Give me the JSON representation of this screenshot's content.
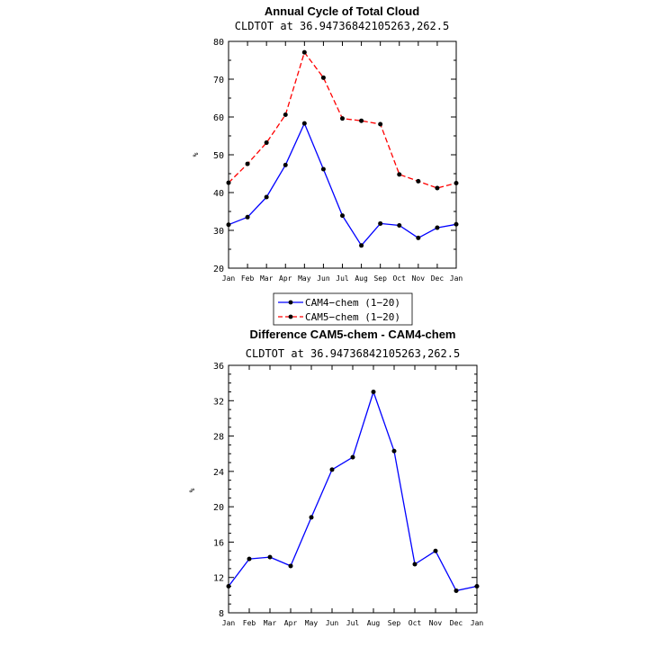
{
  "chart_data": [
    {
      "type": "line",
      "title": "Annual Cycle of Total Cloud",
      "subtitle": "CLDTOT at 36.94736842105263,262.5",
      "ylabel": "%",
      "xlabel": "",
      "categories": [
        "Jan",
        "Feb",
        "Mar",
        "Apr",
        "May",
        "Jun",
        "Jul",
        "Aug",
        "Sep",
        "Oct",
        "Nov",
        "Dec",
        "Jan"
      ],
      "ylim": [
        20,
        80
      ],
      "yticks": [
        20,
        30,
        40,
        50,
        60,
        70,
        80
      ],
      "series": [
        {
          "name": "CAM4−chem (1−20)",
          "color": "#0000ff",
          "dash": "solid",
          "values": [
            31.5,
            33.5,
            38.8,
            47.3,
            58.3,
            46.2,
            33.9,
            26.0,
            31.8,
            31.3,
            28.0,
            30.7,
            31.6
          ]
        },
        {
          "name": "CAM5−chem (1−20)",
          "color": "#ff0000",
          "dash": "dashed",
          "values": [
            42.6,
            47.6,
            53.2,
            60.6,
            77.1,
            70.4,
            59.6,
            59.0,
            58.1,
            44.8,
            43.0,
            41.2,
            42.5
          ]
        }
      ],
      "legend": "below"
    },
    {
      "type": "line",
      "title": "Difference CAM5-chem - CAM4-chem",
      "subtitle": "CLDTOT at 36.94736842105263,262.5",
      "ylabel": "%",
      "xlabel": "",
      "categories": [
        "Jan",
        "Feb",
        "Mar",
        "Apr",
        "May",
        "Jun",
        "Jul",
        "Aug",
        "Sep",
        "Oct",
        "Nov",
        "Dec",
        "Jan"
      ],
      "ylim": [
        8,
        36
      ],
      "yticks": [
        8,
        12,
        16,
        20,
        24,
        28,
        32,
        36
      ],
      "series": [
        {
          "name": "Difference",
          "color": "#0000ff",
          "dash": "solid",
          "values": [
            11.0,
            14.1,
            14.3,
            13.3,
            18.8,
            24.2,
            25.6,
            33.0,
            26.3,
            13.5,
            15.0,
            10.5,
            11.0
          ]
        }
      ]
    }
  ]
}
